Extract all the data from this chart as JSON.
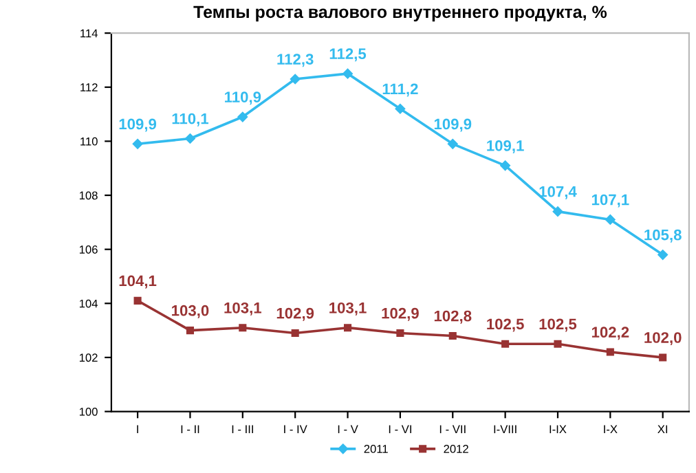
{
  "chart_data": {
    "type": "line",
    "title": "Темпы роста валового внутреннего продукта, %",
    "categories": [
      "I",
      "I - II",
      "I - III",
      "I - IV",
      "I - V",
      "I - VI",
      "I - VII",
      "I-VIII",
      "I-IX",
      "I-X",
      "XI"
    ],
    "series": [
      {
        "name": "2011",
        "color": "#33bbee",
        "marker": "diamond",
        "values": [
          109.9,
          110.1,
          110.9,
          112.3,
          112.5,
          111.2,
          109.9,
          109.1,
          107.4,
          107.1,
          105.8
        ],
        "value_labels": [
          "109,9",
          "110,1",
          "110,9",
          "112,3",
          "112,5",
          "111,2",
          "109,9",
          "109,1",
          "107,4",
          "107,1",
          "105,8"
        ]
      },
      {
        "name": "2012",
        "color": "#993333",
        "marker": "square",
        "values": [
          104.1,
          103.0,
          103.1,
          102.9,
          103.1,
          102.9,
          102.8,
          102.5,
          102.5,
          102.2,
          102.0
        ],
        "value_labels": [
          "104,1",
          "103,0",
          "103,1",
          "102,9",
          "103,1",
          "102,9",
          "102,8",
          "102,5",
          "102,5",
          "102,2",
          "102,0"
        ]
      }
    ],
    "ylim": [
      100,
      114
    ],
    "yticks": [
      100,
      102,
      104,
      106,
      108,
      110,
      112,
      114
    ],
    "grid": false,
    "legend": "bottom"
  }
}
